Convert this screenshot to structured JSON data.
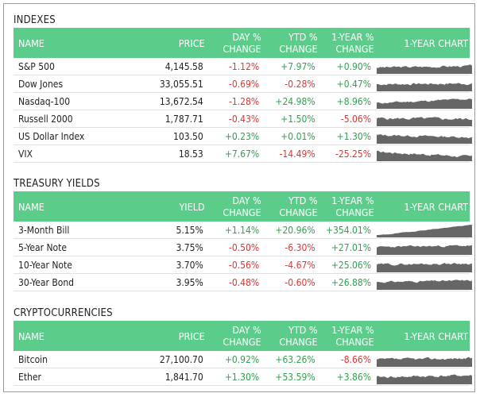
{
  "colors": {
    "header": "#5ccc8b",
    "positive": "#2fa24f",
    "negative": "#e03434",
    "spark": "#666666"
  },
  "indexes": {
    "title": "INDEXES",
    "headers": {
      "name": "NAME",
      "price": "PRICE",
      "day": "DAY % CHANGE",
      "ytd": "YTD % CHANGE",
      "yr": "1-YEAR % CHANGE",
      "chart": "1-YEAR CHART"
    },
    "rows": [
      {
        "name": "S&P 500",
        "price": "4,145.58",
        "day": "-1.12%",
        "ytd": "+7.97%",
        "yr": "+0.90%"
      },
      {
        "name": "Dow Jones",
        "price": "33,055.51",
        "day": "-0.69%",
        "ytd": "-0.28%",
        "yr": "+0.47%"
      },
      {
        "name": "Nasdaq-100",
        "price": "13,672.54",
        "day": "-1.28%",
        "ytd": "+24.98%",
        "yr": "+8.96%"
      },
      {
        "name": "Russell 2000",
        "price": "1,787.71",
        "day": "-0.43%",
        "ytd": "+1.50%",
        "yr": "-5.06%"
      },
      {
        "name": "US Dollar Index",
        "price": "103.50",
        "day": "+0.23%",
        "ytd": "+0.01%",
        "yr": "+1.30%"
      },
      {
        "name": "VIX",
        "price": "18.53",
        "day": "+7.67%",
        "ytd": "-14.49%",
        "yr": "-25.25%"
      }
    ]
  },
  "treasury": {
    "title": "TREASURY YIELDS",
    "headers": {
      "name": "NAME",
      "price": "YIELD",
      "day": "DAY % CHANGE",
      "ytd": "YTD % CHANGE",
      "yr": "1-YEAR % CHANGE",
      "chart": "1-YEAR CHART"
    },
    "rows": [
      {
        "name": "3-Month Bill",
        "price": "5.15%",
        "day": "+1.14%",
        "ytd": "+20.96%",
        "yr": "+354.01%"
      },
      {
        "name": "5-Year Note",
        "price": "3.75%",
        "day": "-0.50%",
        "ytd": "-6.30%",
        "yr": "+27.01%"
      },
      {
        "name": "10-Year Note",
        "price": "3.70%",
        "day": "-0.56%",
        "ytd": "-4.67%",
        "yr": "+25.06%"
      },
      {
        "name": "30-Year Bond",
        "price": "3.95%",
        "day": "-0.48%",
        "ytd": "-0.60%",
        "yr": "+26.88%"
      }
    ]
  },
  "crypto": {
    "title": "CRYPTOCURRENCIES",
    "headers": {
      "name": "NAME",
      "price": "PRICE",
      "day": "DAY % CHANGE",
      "ytd": "YTD % CHANGE",
      "yr": "1-YEAR % CHANGE",
      "chart": "1-YEAR CHART"
    },
    "rows": [
      {
        "name": "Bitcoin",
        "price": "27,100.70",
        "day": "+0.92%",
        "ytd": "+63.26%",
        "yr": "-8.66%"
      },
      {
        "name": "Ether",
        "price": "1,841.70",
        "day": "+1.30%",
        "ytd": "+53.59%",
        "yr": "+3.86%"
      }
    ]
  }
}
